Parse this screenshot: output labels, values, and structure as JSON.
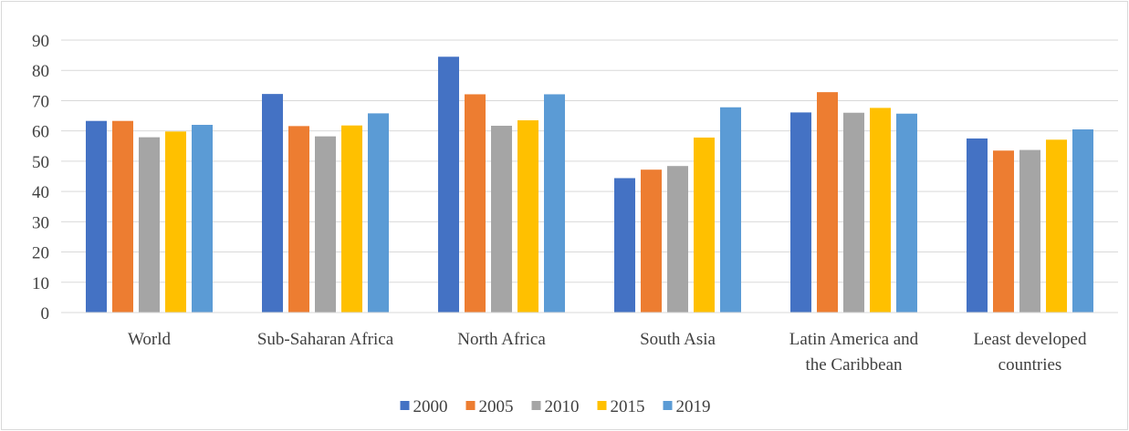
{
  "chart_data": {
    "type": "bar",
    "categories": [
      [
        "World"
      ],
      [
        "Sub-Saharan Africa"
      ],
      [
        "North Africa"
      ],
      [
        "South Asia"
      ],
      [
        "Latin America and",
        "the Caribbean"
      ],
      [
        "Least developed",
        "countries"
      ]
    ],
    "series": [
      {
        "name": "2000",
        "color": "#4472c4",
        "values": [
          63.3,
          72.2,
          84.5,
          44.4,
          66.1,
          57.5
        ]
      },
      {
        "name": "2005",
        "color": "#ed7d31",
        "values": [
          63.3,
          61.6,
          72.1,
          47.2,
          72.8,
          53.5
        ]
      },
      {
        "name": "2010",
        "color": "#a5a5a5",
        "values": [
          57.9,
          58.2,
          61.7,
          48.4,
          66.0,
          53.7
        ]
      },
      {
        "name": "2015",
        "color": "#ffc000",
        "values": [
          59.8,
          61.8,
          63.5,
          57.8,
          67.6,
          57.1
        ]
      },
      {
        "name": "2019",
        "color": "#5b9bd5",
        "values": [
          62.0,
          65.8,
          72.1,
          67.8,
          65.7,
          60.5
        ]
      }
    ],
    "title": "",
    "xlabel": "",
    "ylabel": "",
    "ylim": [
      0,
      90
    ],
    "yticks": [
      0,
      10,
      20,
      30,
      40,
      50,
      60,
      70,
      80,
      90
    ],
    "grid": true,
    "legend_position": "bottom"
  }
}
